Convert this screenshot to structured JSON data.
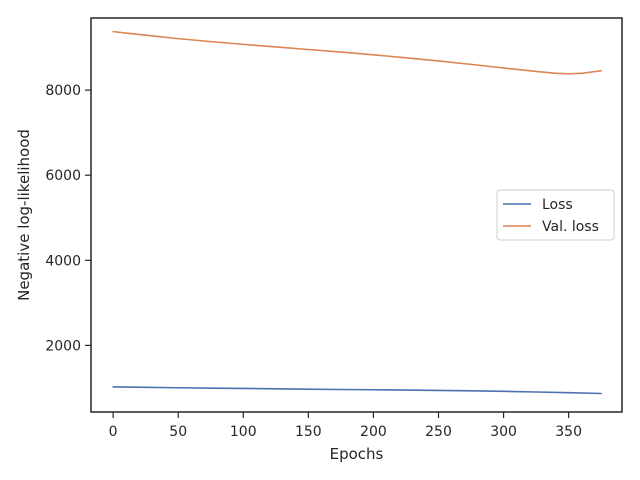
{
  "chart_data": {
    "type": "line",
    "title": "",
    "xlabel": "Epochs",
    "ylabel": "Negative log-likelihood",
    "xlim": [
      -17,
      391
    ],
    "ylim": [
      435,
      9695
    ],
    "xticks": [
      0,
      50,
      100,
      150,
      200,
      250,
      300,
      350
    ],
    "yticks": [
      2000,
      4000,
      6000,
      8000
    ],
    "grid": false,
    "legend_position": "center-right",
    "series": [
      {
        "name": "Loss",
        "color": "#4c72b0",
        "x": [
          0,
          25,
          50,
          75,
          100,
          125,
          150,
          175,
          200,
          225,
          250,
          275,
          300,
          325,
          350,
          375
        ],
        "y": [
          1025,
          1015,
          1005,
          995,
          988,
          980,
          972,
          964,
          958,
          950,
          942,
          932,
          920,
          905,
          890,
          870
        ]
      },
      {
        "name": "Val. loss",
        "color": "#dd8452",
        "x": [
          0,
          25,
          50,
          75,
          100,
          125,
          150,
          175,
          200,
          225,
          250,
          275,
          300,
          325,
          340,
          350,
          360,
          375
        ],
        "y": [
          9375,
          9290,
          9210,
          9140,
          9075,
          9015,
          8955,
          8895,
          8830,
          8760,
          8685,
          8605,
          8520,
          8440,
          8395,
          8385,
          8395,
          8455
        ]
      }
    ]
  }
}
